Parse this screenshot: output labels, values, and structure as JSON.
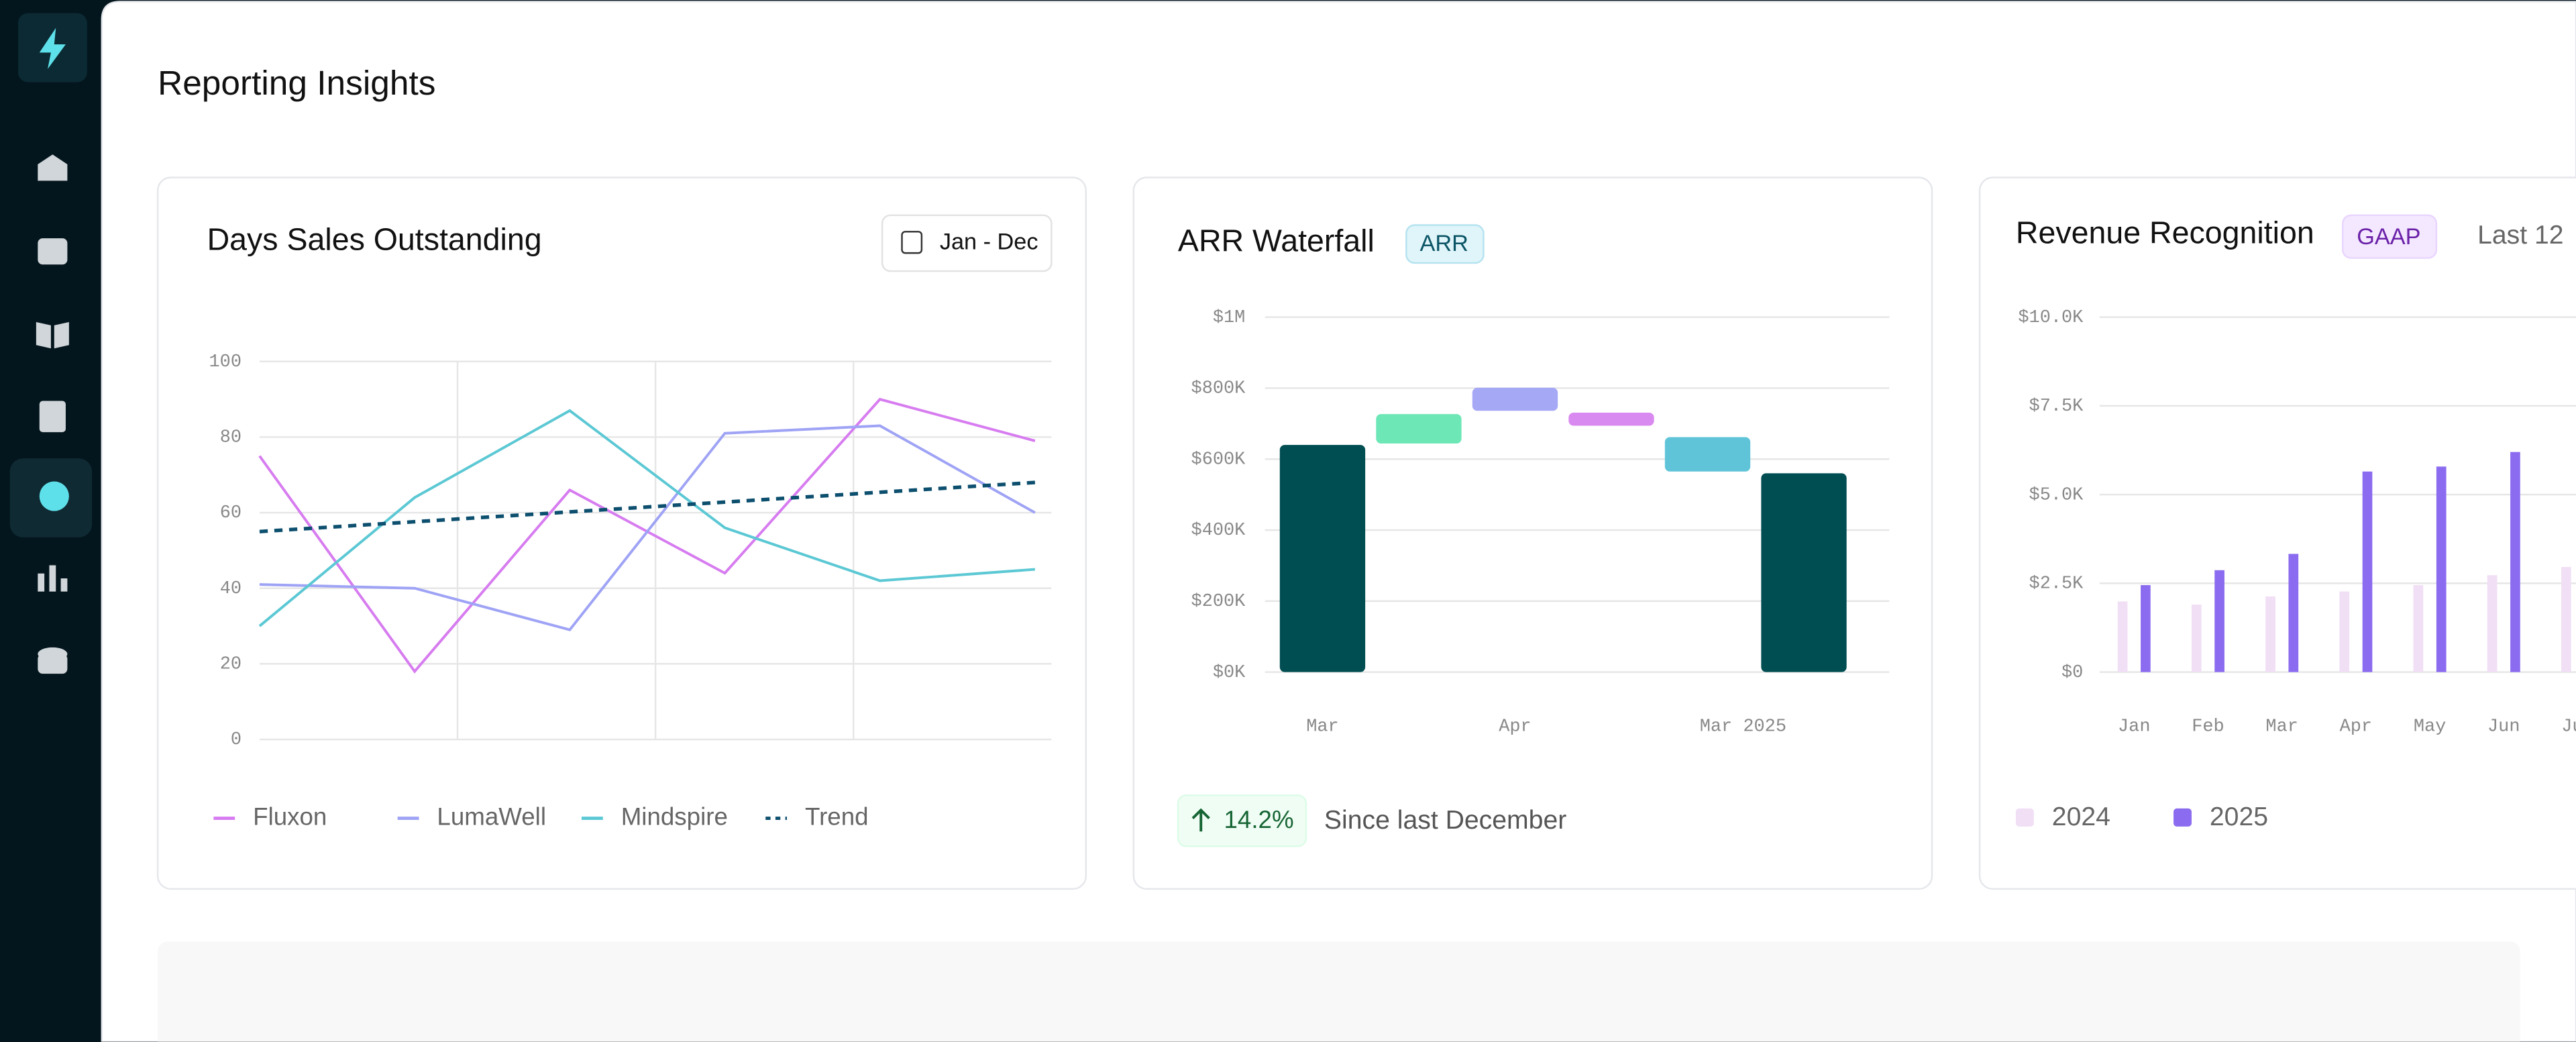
{
  "page": {
    "title": "Reporting Insights"
  },
  "chart_data": [
    {
      "type": "line",
      "title": "Days Sales Outstanding",
      "date_range": "Jan - Dec",
      "categories": [
        null,
        null,
        null,
        null,
        null,
        null
      ],
      "series": [
        {
          "name": "Fluxon",
          "color": "#d77cf0",
          "values": [
            75,
            18,
            66,
            44,
            90,
            79
          ]
        },
        {
          "name": "LumaWell",
          "color": "#9fa3f5",
          "values": [
            41,
            40,
            29,
            81,
            83,
            60
          ]
        },
        {
          "name": "Mindspire",
          "color": "#5bc8d4",
          "values": [
            30,
            64,
            87,
            56,
            42,
            45
          ]
        },
        {
          "name": "Trend",
          "color": "#0d4f6e",
          "dashed": true,
          "values": [
            55,
            57.6,
            60.2,
            62.8,
            65.4,
            68
          ]
        }
      ],
      "ylim": [
        0,
        100
      ],
      "yticks": [
        0,
        20,
        40,
        60,
        80,
        100
      ],
      "grid": true,
      "legend": "bottom"
    },
    {
      "type": "waterfall",
      "title": "ARR Waterfall",
      "badge": "ARR",
      "categories": [
        "Mar",
        null,
        "Apr",
        null,
        null,
        "Mar 2025"
      ],
      "values": [
        [
          0,
          640000
        ],
        [
          644000,
          727000
        ],
        [
          736000,
          801000
        ],
        [
          694000,
          731000
        ],
        [
          565000,
          662000
        ],
        [
          0,
          560000
        ]
      ],
      "colors": [
        "#004d52",
        "#6ee7b7",
        "#a5a8f5",
        "#d98af0",
        "#5fc4d8",
        "#004d52"
      ],
      "ylim": [
        0,
        1000000
      ],
      "yticks": [
        {
          "value": 0,
          "label": "$0K"
        },
        {
          "value": 200000,
          "label": "$200K"
        },
        {
          "value": 400000,
          "label": "$400K"
        },
        {
          "value": 600000,
          "label": "$600K"
        },
        {
          "value": 800000,
          "label": "$800K"
        },
        {
          "value": 1000000,
          "label": "$1M"
        }
      ],
      "grid": true,
      "change": "14.2%",
      "change_note": "Since last December"
    },
    {
      "type": "bar",
      "title": "Revenue Recognition",
      "badge": "GAAP",
      "period": "Last 12",
      "categories": [
        "Jan",
        "Feb",
        "Mar",
        "Apr",
        "May",
        "Jun",
        "Jul"
      ],
      "series": [
        {
          "name": "2024",
          "color": "#f1dff5",
          "values": [
            1990,
            1900,
            2130,
            2270,
            2450,
            2730,
            2960
          ]
        },
        {
          "name": "2025",
          "color": "#8b6cf0",
          "values": [
            2450,
            2870,
            3330,
            5650,
            5790,
            6200,
            null
          ]
        }
      ],
      "ylim": [
        0,
        10000
      ],
      "yticks": [
        {
          "value": 0,
          "label": "$0"
        },
        {
          "value": 2500,
          "label": "$2.5K"
        },
        {
          "value": 5000,
          "label": "$5.0K"
        },
        {
          "value": 7500,
          "label": "$7.5K"
        },
        {
          "value": 10000,
          "label": "$10.0K"
        }
      ],
      "grid": true,
      "legend": "bottom"
    }
  ]
}
